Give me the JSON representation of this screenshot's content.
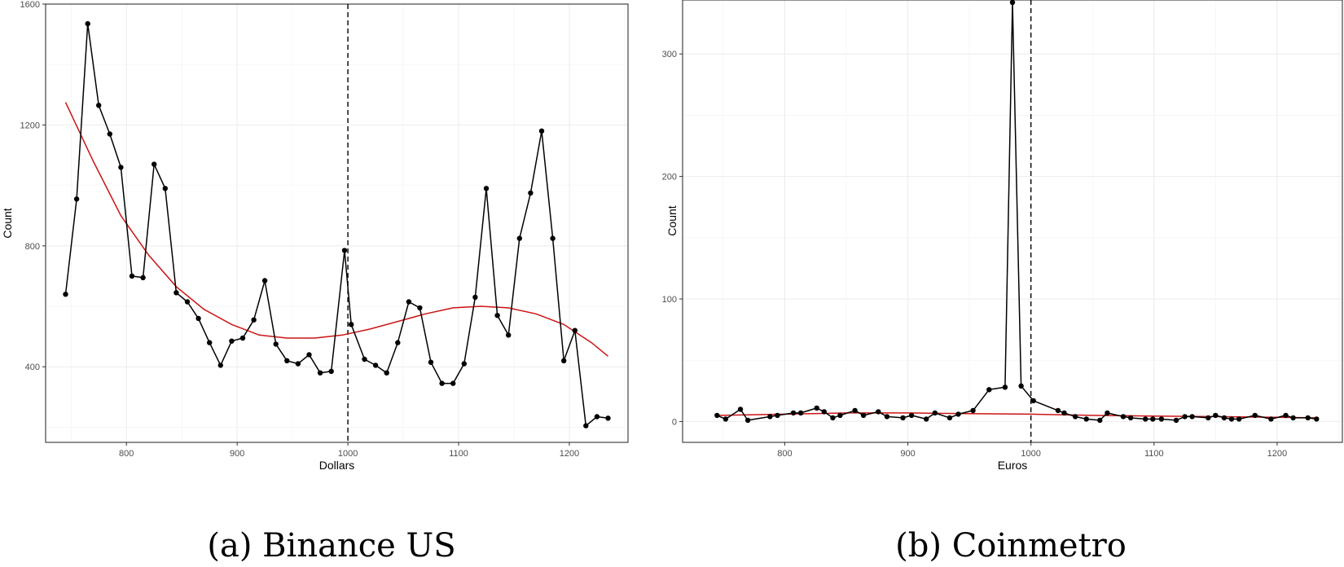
{
  "chart_data": [
    {
      "type": "line",
      "caption": "(a) Binance US",
      "xlabel": "Dollars",
      "ylabel": "Count",
      "xlim": [
        727,
        1253
      ],
      "ylim": [
        150,
        1600
      ],
      "x_ticks": [
        800,
        900,
        1000,
        1100,
        1200
      ],
      "y_ticks": [
        400,
        800,
        1200,
        1600
      ],
      "grid": true,
      "vline": 1000,
      "colors": {
        "series": "#000000",
        "fit": "#cc1414",
        "vline": "#000000"
      },
      "series": [
        {
          "x": [
            745,
            755,
            765,
            775,
            785,
            795,
            805,
            815,
            825,
            835,
            845,
            855,
            865,
            875,
            885,
            895,
            905,
            915,
            925,
            935,
            945,
            955,
            965,
            975,
            985,
            997,
            1003,
            1015,
            1025,
            1035,
            1045,
            1055,
            1065,
            1075,
            1085,
            1095,
            1105,
            1115,
            1125,
            1135,
            1145,
            1155,
            1165,
            1175,
            1185,
            1195,
            1205,
            1215,
            1225,
            1235
          ],
          "y": [
            640,
            955,
            1535,
            1265,
            1170,
            1060,
            700,
            695,
            1070,
            990,
            645,
            615,
            560,
            480,
            405,
            485,
            495,
            555,
            685,
            475,
            420,
            410,
            440,
            380,
            385,
            785,
            540,
            425,
            405,
            380,
            480,
            615,
            595,
            415,
            345,
            345,
            410,
            630,
            990,
            570,
            505,
            825,
            975,
            1180,
            825,
            420,
            520,
            205,
            235,
            230
          ]
        }
      ],
      "fit": {
        "x": [
          745,
          770,
          795,
          820,
          845,
          870,
          895,
          920,
          945,
          970,
          995,
          1020,
          1045,
          1070,
          1095,
          1120,
          1145,
          1170,
          1195,
          1220,
          1235
        ],
        "y": [
          1275,
          1080,
          900,
          770,
          665,
          590,
          540,
          505,
          495,
          495,
          505,
          525,
          550,
          575,
          595,
          600,
          595,
          575,
          540,
          480,
          435
        ]
      }
    },
    {
      "type": "line",
      "caption": "(b) Coinmetro",
      "xlabel": "Euros",
      "ylabel": "Count",
      "xlim": [
        717,
        1253
      ],
      "ylim": [
        -17,
        344
      ],
      "x_ticks": [
        800,
        900,
        1000,
        1100,
        1200
      ],
      "y_ticks": [
        0,
        100,
        200,
        300
      ],
      "grid": true,
      "vline": 1000,
      "colors": {
        "series": "#000000",
        "fit": "#cc1414",
        "vline": "#000000"
      },
      "series": [
        {
          "x": [
            745,
            752,
            764,
            770,
            788,
            794,
            807,
            813,
            826,
            832,
            839,
            845,
            857,
            864,
            876,
            883,
            896,
            903,
            915,
            922,
            934,
            941,
            953,
            966,
            979,
            985,
            992,
            1002,
            1022,
            1027,
            1036,
            1045,
            1056,
            1062,
            1075,
            1081,
            1093,
            1099,
            1106,
            1118,
            1125,
            1131,
            1144,
            1150,
            1157,
            1163,
            1169,
            1182,
            1195,
            1207,
            1213,
            1225,
            1232
          ],
          "y": [
            5,
            2,
            10,
            1,
            4,
            5,
            7,
            7,
            11,
            8,
            3,
            5,
            9,
            5,
            8,
            4,
            3,
            5,
            2,
            7,
            3,
            6,
            9,
            26,
            28,
            342,
            29,
            17,
            9,
            7,
            4,
            2,
            1,
            7,
            4,
            3,
            2,
            2,
            2,
            1,
            4,
            4,
            3,
            5,
            3,
            2,
            2,
            5,
            2,
            5,
            3,
            3,
            2
          ]
        }
      ],
      "fit": {
        "x": [
          745,
          800,
          850,
          900,
          950,
          1000,
          1050,
          1100,
          1150,
          1200,
          1232
        ],
        "y": [
          5,
          6,
          7,
          7,
          6.5,
          6,
          5,
          4.5,
          4,
          3.5,
          3
        ]
      }
    }
  ]
}
